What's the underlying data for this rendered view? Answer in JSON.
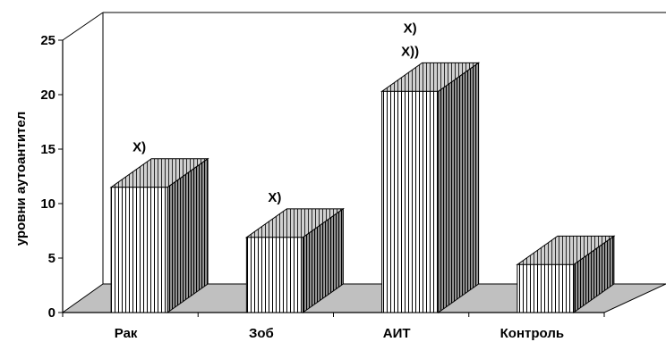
{
  "chart_data": {
    "type": "bar",
    "style": "3d",
    "ylabel": "уровни аутоантител",
    "xlabel": "",
    "ylim": [
      0,
      25
    ],
    "yticks": [
      "0",
      "5",
      "10",
      "15",
      "20",
      "25"
    ],
    "categories": [
      "Рак",
      "Зоб",
      "АИТ",
      "Контроль"
    ],
    "values": [
      11.5,
      6.9,
      20.3,
      4.4
    ],
    "annotations": [
      [
        "X)"
      ],
      [
        "X)"
      ],
      [
        "X)",
        "X))"
      ],
      []
    ],
    "grid": false,
    "legend": "none"
  },
  "colors": {
    "bar_front": "#ffffff",
    "bar_stripe": "#000000",
    "bar_side": "#404040",
    "floor": "#c0c0c0",
    "line": "#000000"
  }
}
